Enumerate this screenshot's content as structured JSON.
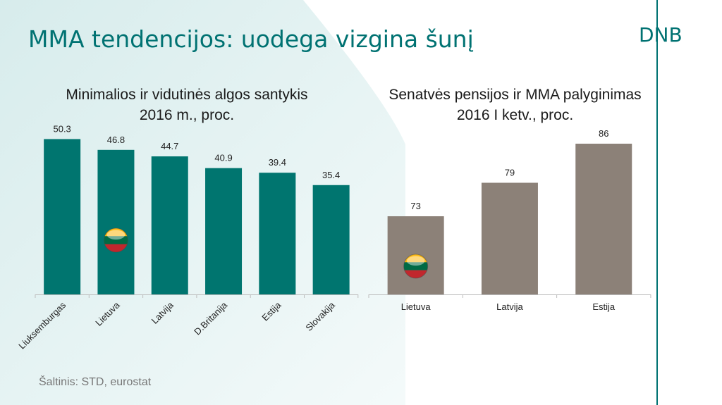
{
  "slide": {
    "title": "MMA tendencijos: uodega vizgina šunį",
    "logo": "DNB",
    "source": "Šaltinis: STD, eurostat"
  },
  "colors": {
    "brand": "#007272",
    "left_bars": "#00756f",
    "right_bars": "#8c8178",
    "flag_yellow": "#fdb913",
    "flag_green": "#006a44",
    "flag_red": "#c1272d"
  },
  "icons": [
    "lithuania-flag-icon",
    "lithuania-flag-icon"
  ],
  "chart_data": [
    {
      "type": "bar",
      "title": "Minimalios ir vidutinės algos santykis\n2016 m., proc.",
      "categories": [
        "Liuksemburgas",
        "Lietuva",
        "Latvija",
        "D.Britanija",
        "Estija",
        "Slovakija"
      ],
      "values": [
        50.3,
        46.8,
        44.7,
        40.9,
        39.4,
        35.4
      ],
      "data_labels": [
        "50.3",
        "46.8",
        "44.7",
        "40.9",
        "39.4",
        "35.4"
      ],
      "xlabel": "",
      "ylabel": "",
      "ylim": [
        0,
        52
      ],
      "grid": false,
      "legend": "none",
      "tick_label_rotation": -45
    },
    {
      "type": "bar",
      "title": "Senatvės pensijos ir MMA palyginimas\n2016 I ketv., proc.",
      "categories": [
        "Lietuva",
        "Latvija",
        "Estija"
      ],
      "values": [
        73,
        79,
        86
      ],
      "data_labels": [
        "73",
        "79",
        "86"
      ],
      "xlabel": "",
      "ylabel": "",
      "ylim": [
        59,
        86
      ],
      "grid": false,
      "legend": "none"
    }
  ]
}
